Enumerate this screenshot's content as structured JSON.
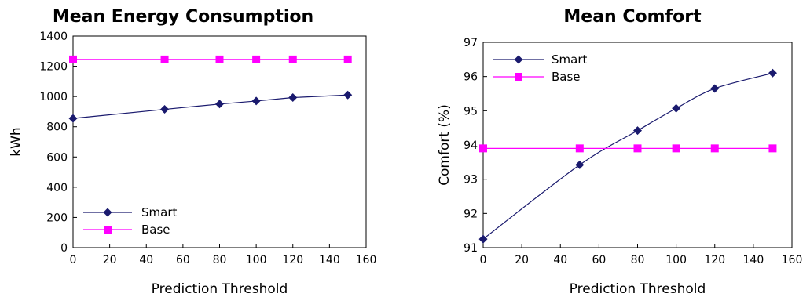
{
  "chart_data": [
    {
      "type": "line",
      "title": "Mean Energy Consumption",
      "xlabel": "Prediction Threshold",
      "ylabel": "kWh",
      "xlim": [
        0,
        160
      ],
      "ylim": [
        0,
        1400
      ],
      "xticks": [
        0,
        20,
        40,
        60,
        80,
        100,
        120,
        140,
        160
      ],
      "yticks": [
        0,
        200,
        400,
        600,
        800,
        1000,
        1200,
        1400
      ],
      "grid": false,
      "legend_position": "bottom-left",
      "x": [
        0,
        50,
        80,
        100,
        120,
        150
      ],
      "series": [
        {
          "name": "Smart",
          "values": [
            855,
            915,
            950,
            970,
            993,
            1010
          ],
          "color": "#1a1a6e",
          "marker": "diamond"
        },
        {
          "name": "Base",
          "values": [
            1245,
            1245,
            1245,
            1245,
            1245,
            1245
          ],
          "color": "#ff00ff",
          "marker": "square"
        }
      ]
    },
    {
      "type": "line",
      "title": "Mean Comfort",
      "xlabel": "Prediction Threshold",
      "ylabel": "Comfort (%)",
      "xlim": [
        0,
        160
      ],
      "ylim": [
        91,
        97
      ],
      "xticks": [
        0,
        20,
        40,
        60,
        80,
        100,
        120,
        140,
        160
      ],
      "yticks": [
        91,
        92,
        93,
        94,
        95,
        96,
        97
      ],
      "grid": false,
      "legend_position": "top-left",
      "x": [
        0,
        50,
        80,
        100,
        120,
        150
      ],
      "series": [
        {
          "name": "Smart",
          "values": [
            91.25,
            93.42,
            94.42,
            95.07,
            95.65,
            96.1
          ],
          "color": "#1a1a6e",
          "marker": "diamond"
        },
        {
          "name": "Base",
          "values": [
            93.9,
            93.9,
            93.9,
            93.9,
            93.9,
            93.9
          ],
          "color": "#ff00ff",
          "marker": "square"
        }
      ]
    }
  ]
}
